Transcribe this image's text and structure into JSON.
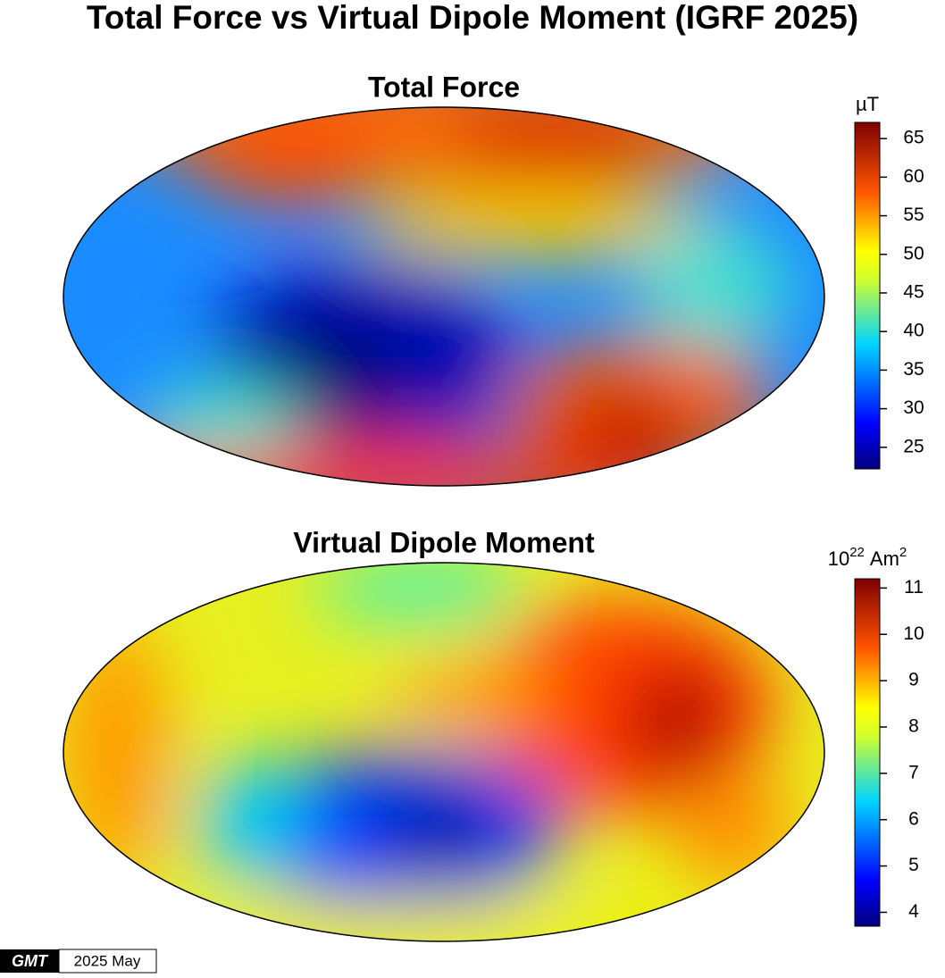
{
  "title": "Total Force vs Virtual Dipole Moment (IGRF 2025)",
  "maps": [
    {
      "title": "Total Force",
      "colorbar": {
        "unit": "µT",
        "lim": [
          22.2,
          67.1
        ],
        "ticks": [
          25,
          30,
          35,
          40,
          45,
          50,
          55,
          60,
          65
        ]
      }
    },
    {
      "title": "Virtual Dipole Moment",
      "colorbar": {
        "unit": {
          "base": "10",
          "exp": "22",
          "text": "Am",
          "text_exp": "2"
        },
        "lim": [
          3.7,
          11.2
        ],
        "ticks": [
          4,
          5,
          6,
          7,
          8,
          9,
          10,
          11
        ]
      }
    }
  ],
  "footer": {
    "logo": "GMT",
    "timestamp": "2025 May"
  }
}
